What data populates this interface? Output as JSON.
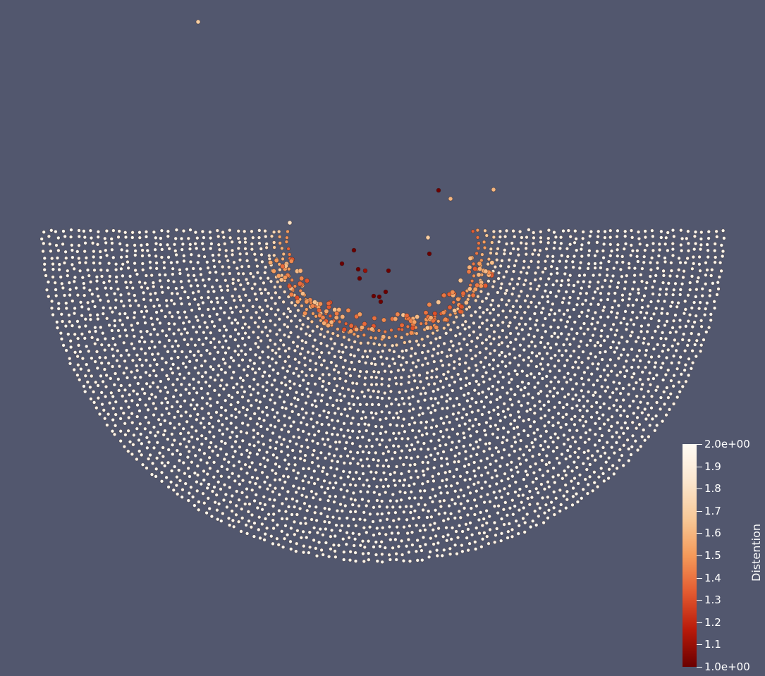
{
  "scene": {
    "background_color": "#52576e",
    "description_type": "particle-simulation-render"
  },
  "colorbar": {
    "title": "Distention",
    "range": [
      1.0,
      2.0
    ],
    "colormap": [
      "#6b0000",
      "#b81a0a",
      "#e35a30",
      "#f49a5a",
      "#f8c998",
      "#fbe6cf",
      "#fffbf4"
    ],
    "ticks": [
      {
        "label": "2.0e+00",
        "value": 2.0
      },
      {
        "label": "1.9",
        "value": 1.9
      },
      {
        "label": "1.8",
        "value": 1.8
      },
      {
        "label": "1.7",
        "value": 1.7
      },
      {
        "label": "1.6",
        "value": 1.6
      },
      {
        "label": "1.5",
        "value": 1.5
      },
      {
        "label": "1.4",
        "value": 1.4
      },
      {
        "label": "1.3",
        "value": 1.3
      },
      {
        "label": "1.2",
        "value": 1.2
      },
      {
        "label": "1.1",
        "value": 1.1
      },
      {
        "label": "1.0e+00",
        "value": 1.0
      }
    ]
  }
}
